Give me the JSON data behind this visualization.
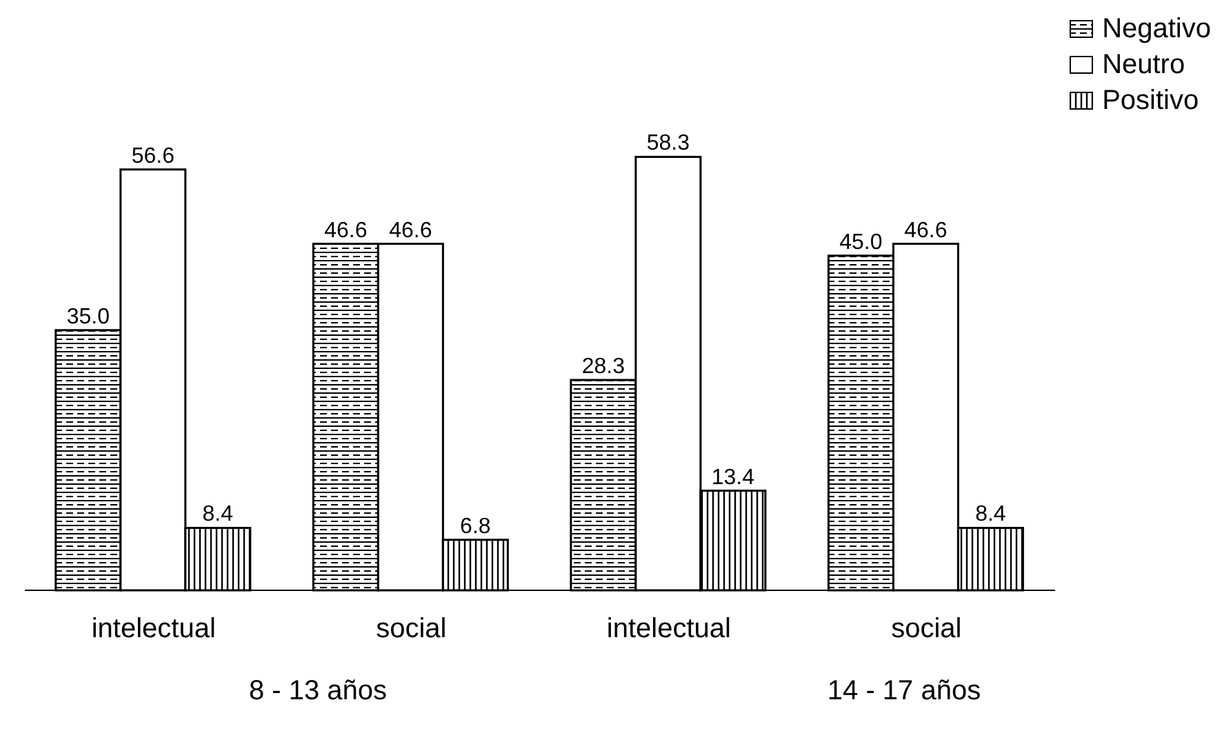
{
  "chart_data": {
    "type": "bar",
    "categories": [
      "intelectual",
      "social",
      "intelectual",
      "social"
    ],
    "series": [
      {
        "name": "Negativo",
        "color": "#000000",
        "values": [
          35.0,
          46.6,
          28.3,
          45.0
        ],
        "value_labels": [
          "35.0",
          "46.6",
          "28.3",
          "45.0"
        ]
      },
      {
        "name": "Neutro",
        "color": "#ffffff",
        "values": [
          56.6,
          46.6,
          58.3,
          46.6
        ],
        "value_labels": [
          "56.6",
          "46.6",
          "58.3",
          "46.6"
        ]
      },
      {
        "name": "Positivo",
        "color": "#000000",
        "values": [
          8.4,
          6.8,
          13.4,
          8.4
        ],
        "value_labels": [
          "8.4",
          "6.8",
          "13.4",
          "8.4"
        ]
      }
    ],
    "annotations": [
      "8 - 13 años",
      "14 - 17 años"
    ],
    "legend": "top right",
    "grid": false
  }
}
